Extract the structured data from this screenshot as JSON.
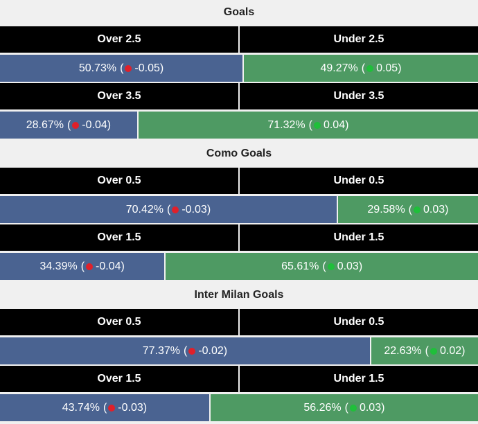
{
  "parens": [
    "(",
    ")"
  ],
  "sections": [
    {
      "title": "Goals",
      "markets": [
        {
          "over": {
            "label": "Over 2.5",
            "value": 50.73,
            "value_label": "50.73%",
            "change": -0.05
          },
          "under": {
            "label": "Under 2.5",
            "value": 49.27,
            "value_label": "49.27%",
            "change": 0.05
          }
        },
        {
          "over": {
            "label": "Over 3.5",
            "value": 28.67,
            "value_label": "28.67%",
            "change": -0.04
          },
          "under": {
            "label": "Under 3.5",
            "value": 71.32,
            "value_label": "71.32%",
            "change": 0.04
          }
        }
      ]
    },
    {
      "title": "Como Goals",
      "markets": [
        {
          "over": {
            "label": "Over 0.5",
            "value": 70.42,
            "value_label": "70.42%",
            "change": -0.03
          },
          "under": {
            "label": "Under 0.5",
            "value": 29.58,
            "value_label": "29.58%",
            "change": 0.03
          }
        },
        {
          "over": {
            "label": "Over 1.5",
            "value": 34.39,
            "value_label": "34.39%",
            "change": -0.04
          },
          "under": {
            "label": "Under 1.5",
            "value": 65.61,
            "value_label": "65.61%",
            "change": 0.03
          }
        }
      ]
    },
    {
      "title": "Inter Milan Goals",
      "markets": [
        {
          "over": {
            "label": "Over 0.5",
            "value": 77.37,
            "value_label": "77.37%",
            "change": -0.02
          },
          "under": {
            "label": "Under 0.5",
            "value": 22.63,
            "value_label": "22.63%",
            "change": 0.02
          }
        },
        {
          "over": {
            "label": "Over 1.5",
            "value": 43.74,
            "value_label": "43.74%",
            "change": -0.03
          },
          "under": {
            "label": "Under 1.5",
            "value": 56.26,
            "value_label": "56.26%",
            "change": 0.03
          }
        }
      ]
    }
  ]
}
